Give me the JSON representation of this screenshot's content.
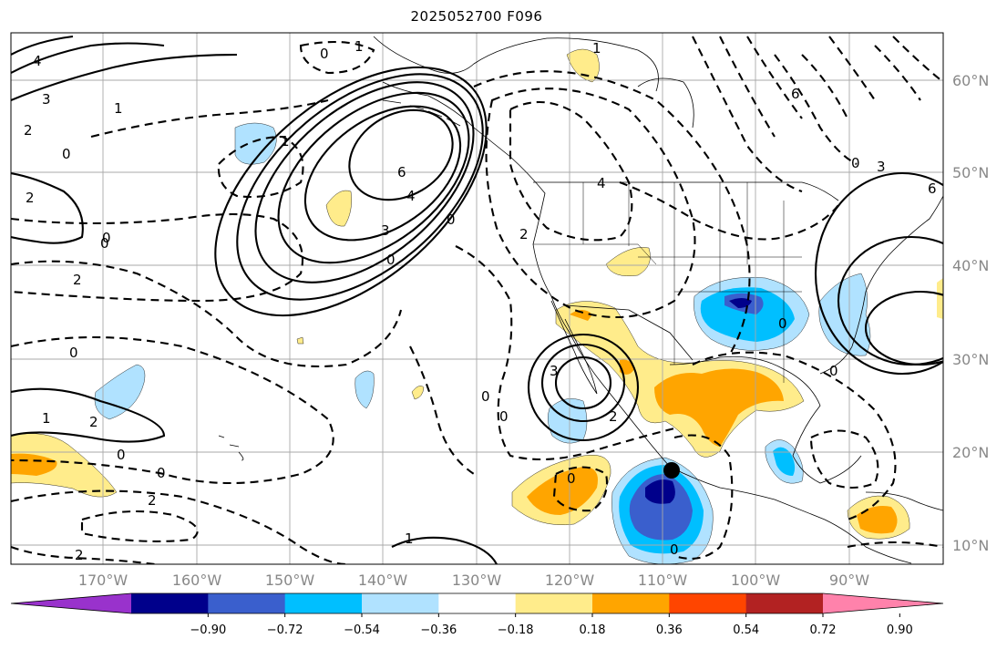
{
  "title": "2025052700 F096",
  "lat_labels": [
    "60°N",
    "50°N",
    "40°N",
    "30°N",
    "20°N",
    "10°N"
  ],
  "lon_labels": [
    "170°W",
    "160°W",
    "150°W",
    "140°W",
    "130°W",
    "120°W",
    "110°W",
    "100°W",
    "90°W"
  ],
  "colorbar": {
    "tick_labels": [
      "−0.90",
      "−0.72",
      "−0.54",
      "−0.36",
      "−0.18",
      "0.18",
      "0.36",
      "0.54",
      "0.72",
      "0.90"
    ],
    "colors": [
      "#9932CC",
      "#00008B",
      "#3A5FCD",
      "#00BFFF",
      "#B0E2FF",
      "#FFFFFF",
      "#FFEC8B",
      "#FFA500",
      "#FF4500",
      "#B22222",
      "#FF82AB"
    ]
  },
  "contour_labels": [
    "1",
    "0",
    "4",
    "3",
    "2",
    "0",
    "1",
    "6",
    "4",
    "3",
    "0",
    "2",
    "0",
    "2",
    "0",
    "2",
    "3",
    "0",
    "0",
    "2",
    "1",
    "2",
    "0",
    "0",
    "2",
    "1",
    "0",
    "0",
    "0",
    "6",
    "4",
    "1",
    "0",
    "3",
    "6",
    "2",
    "0",
    "0",
    "1",
    "0"
  ],
  "marker": "station-dot"
}
